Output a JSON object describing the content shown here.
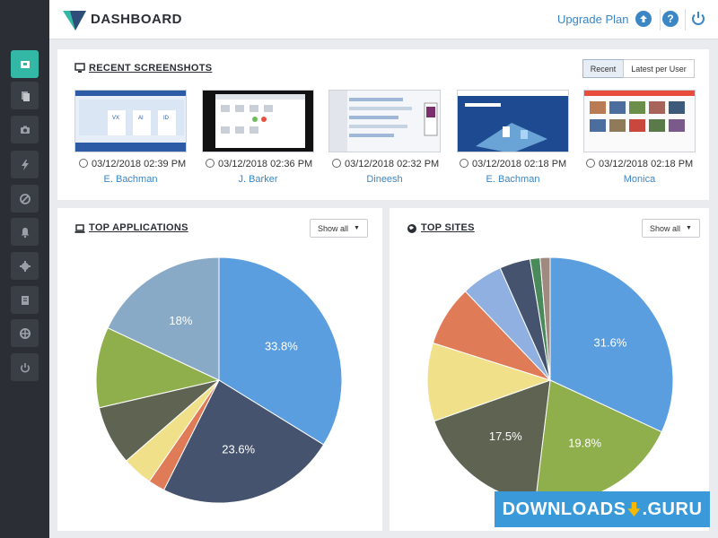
{
  "header": {
    "brand": "DASHBOARD",
    "upgrade_label": "Upgrade Plan",
    "icons": [
      "upload-icon",
      "help-icon",
      "power-icon"
    ],
    "help_glyph": "?"
  },
  "sidebar": {
    "items": [
      {
        "name": "dashboard",
        "icon": "dashboard-icon",
        "active": true
      },
      {
        "name": "documents",
        "icon": "documents-icon"
      },
      {
        "name": "camera",
        "icon": "camera-icon"
      },
      {
        "name": "activity",
        "icon": "lightning-icon"
      },
      {
        "name": "blocked",
        "icon": "block-icon"
      },
      {
        "name": "alerts",
        "icon": "bell-icon"
      },
      {
        "name": "settings",
        "icon": "gear-icon"
      },
      {
        "name": "reports",
        "icon": "report-icon"
      },
      {
        "name": "support",
        "icon": "lifebuoy-icon"
      },
      {
        "name": "logout",
        "icon": "power-icon"
      }
    ]
  },
  "recent": {
    "title": "RECENT SCREENSHOTS",
    "tabs": [
      "Recent",
      "Latest per User"
    ],
    "active_tab": 0,
    "shots": [
      {
        "time": "03/12/2018 02:39 PM",
        "user": "E. Bachman"
      },
      {
        "time": "03/12/2018 02:36 PM",
        "user": "J. Barker"
      },
      {
        "time": "03/12/2018 02:32 PM",
        "user": "Dineesh"
      },
      {
        "time": "03/12/2018 02:18 PM",
        "user": "E. Bachman"
      },
      {
        "time": "03/12/2018 02:18 PM",
        "user": "Monica"
      }
    ]
  },
  "top_apps": {
    "title": "TOP APPLICATIONS",
    "dropdown": "Show all"
  },
  "top_sites": {
    "title": "TOP SITES",
    "dropdown": "Show all"
  },
  "watermark": {
    "left": "DOWNLOADS",
    "right": ".GURU"
  },
  "colors": {
    "accent": "#34b8a6",
    "link": "#3b87c6",
    "sidebar": "#2b2e34"
  },
  "chart_data": [
    {
      "type": "pie",
      "title": "TOP APPLICATIONS",
      "slices": [
        {
          "value": 33.8,
          "label": "33.8%",
          "color": "#5b9ee0"
        },
        {
          "value": 23.6,
          "label": "23.6%",
          "color": "#45536e"
        },
        {
          "value": 2.2,
          "label": "",
          "color": "#e07b58"
        },
        {
          "value": 4.0,
          "label": "",
          "color": "#f0e08a"
        },
        {
          "value": 7.8,
          "label": "",
          "color": "#5f6452"
        },
        {
          "value": 10.6,
          "label": "",
          "color": "#8fae4c"
        },
        {
          "value": 18.0,
          "label": "18%",
          "color": "#89aac7"
        }
      ]
    },
    {
      "type": "pie",
      "title": "TOP SITES",
      "slices": [
        {
          "value": 31.6,
          "label": "31.6%",
          "color": "#5b9ee0"
        },
        {
          "value": 19.8,
          "label": "19.8%",
          "color": "#8fae4c"
        },
        {
          "value": 17.5,
          "label": "17.5%",
          "color": "#5f6452"
        },
        {
          "value": 10.2,
          "label": "",
          "color": "#f0e08a"
        },
        {
          "value": 7.9,
          "label": "",
          "color": "#e07b58"
        },
        {
          "value": 5.4,
          "label": "",
          "color": "#8fb0e0"
        },
        {
          "value": 4.0,
          "label": "",
          "color": "#45536e"
        },
        {
          "value": 1.3,
          "label": "",
          "color": "#4a8a5a"
        },
        {
          "value": 1.3,
          "label": "",
          "color": "#a08a80"
        }
      ]
    }
  ]
}
